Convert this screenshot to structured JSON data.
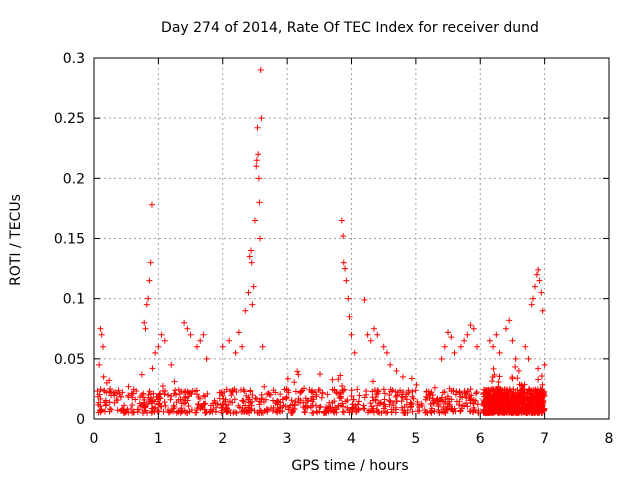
{
  "chart_data": {
    "type": "scatter",
    "title": "Day 274 of 2014, Rate Of TEC Index for receiver dund",
    "xlabel": "GPS time / hours",
    "ylabel": "ROTI / TECUs",
    "xlim": [
      0,
      8
    ],
    "ylim": [
      0,
      0.3
    ],
    "xticks": [
      0,
      1,
      2,
      3,
      4,
      5,
      6,
      7,
      8
    ],
    "yticks": [
      0,
      0.05,
      0.1,
      0.15,
      0.2,
      0.25,
      0.3
    ],
    "xtick_labels": [
      "0",
      "1",
      "2",
      "3",
      "4",
      "5",
      "6",
      "7",
      "8"
    ],
    "ytick_labels": [
      "0",
      "0.05",
      "0.1",
      "0.15",
      "0.2",
      "0.25",
      "0.3"
    ],
    "grid": true,
    "marker": "+",
    "marker_color": "#ff0000",
    "series": [
      {
        "name": "ROTI",
        "points": [
          [
            0.1,
            0.075
          ],
          [
            0.12,
            0.07
          ],
          [
            0.14,
            0.06
          ],
          [
            0.08,
            0.045
          ],
          [
            0.15,
            0.035
          ],
          [
            0.2,
            0.03
          ],
          [
            0.25,
            0.025
          ],
          [
            0.78,
            0.08
          ],
          [
            0.8,
            0.075
          ],
          [
            0.82,
            0.095
          ],
          [
            0.84,
            0.1
          ],
          [
            0.86,
            0.115
          ],
          [
            0.88,
            0.13
          ],
          [
            0.9,
            0.178
          ],
          [
            0.95,
            0.055
          ],
          [
            1.0,
            0.06
          ],
          [
            1.05,
            0.07
          ],
          [
            1.1,
            0.065
          ],
          [
            1.2,
            0.045
          ],
          [
            1.4,
            0.08
          ],
          [
            1.45,
            0.075
          ],
          [
            1.5,
            0.07
          ],
          [
            1.6,
            0.06
          ],
          [
            1.65,
            0.065
          ],
          [
            1.7,
            0.07
          ],
          [
            1.75,
            0.05
          ],
          [
            2.0,
            0.06
          ],
          [
            2.1,
            0.065
          ],
          [
            2.2,
            0.055
          ],
          [
            2.25,
            0.072
          ],
          [
            2.3,
            0.06
          ],
          [
            2.35,
            0.09
          ],
          [
            2.4,
            0.105
          ],
          [
            2.42,
            0.135
          ],
          [
            2.44,
            0.14
          ],
          [
            2.45,
            0.13
          ],
          [
            2.46,
            0.095
          ],
          [
            2.48,
            0.11
          ],
          [
            2.5,
            0.165
          ],
          [
            2.52,
            0.21
          ],
          [
            2.53,
            0.215
          ],
          [
            2.54,
            0.242
          ],
          [
            2.55,
            0.22
          ],
          [
            2.56,
            0.2
          ],
          [
            2.57,
            0.18
          ],
          [
            2.58,
            0.15
          ],
          [
            2.59,
            0.29
          ],
          [
            2.6,
            0.25
          ],
          [
            2.62,
            0.06
          ],
          [
            3.85,
            0.165
          ],
          [
            3.87,
            0.152
          ],
          [
            3.88,
            0.13
          ],
          [
            3.9,
            0.125
          ],
          [
            3.92,
            0.115
          ],
          [
            3.95,
            0.1
          ],
          [
            3.97,
            0.085
          ],
          [
            4.0,
            0.07
          ],
          [
            4.05,
            0.055
          ],
          [
            4.2,
            0.099
          ],
          [
            4.25,
            0.07
          ],
          [
            4.3,
            0.065
          ],
          [
            4.35,
            0.075
          ],
          [
            4.4,
            0.07
          ],
          [
            4.5,
            0.06
          ],
          [
            4.55,
            0.055
          ],
          [
            4.6,
            0.045
          ],
          [
            4.7,
            0.04
          ],
          [
            4.8,
            0.035
          ],
          [
            5.4,
            0.05
          ],
          [
            5.45,
            0.06
          ],
          [
            5.5,
            0.072
          ],
          [
            5.55,
            0.068
          ],
          [
            5.6,
            0.055
          ],
          [
            5.7,
            0.06
          ],
          [
            5.75,
            0.065
          ],
          [
            5.8,
            0.07
          ],
          [
            5.85,
            0.078
          ],
          [
            5.9,
            0.075
          ],
          [
            5.95,
            0.06
          ],
          [
            6.15,
            0.065
          ],
          [
            6.2,
            0.06
          ],
          [
            6.25,
            0.07
          ],
          [
            6.3,
            0.055
          ],
          [
            6.4,
            0.075
          ],
          [
            6.45,
            0.082
          ],
          [
            6.5,
            0.065
          ],
          [
            6.55,
            0.05
          ],
          [
            6.6,
            0.04
          ],
          [
            6.7,
            0.06
          ],
          [
            6.75,
            0.05
          ],
          [
            6.8,
            0.095
          ],
          [
            6.82,
            0.1
          ],
          [
            6.85,
            0.11
          ],
          [
            6.88,
            0.12
          ],
          [
            6.9,
            0.124
          ],
          [
            6.92,
            0.115
          ],
          [
            6.95,
            0.105
          ],
          [
            6.97,
            0.09
          ],
          [
            7.0,
            0.045
          ]
        ],
        "noise_band": {
          "segments": [
            [
              0.05,
              5.98
            ],
            [
              6.05,
              7.0
            ]
          ],
          "typical_min": 0.005,
          "typical_max": 0.025,
          "count": 1500
        }
      }
    ]
  }
}
